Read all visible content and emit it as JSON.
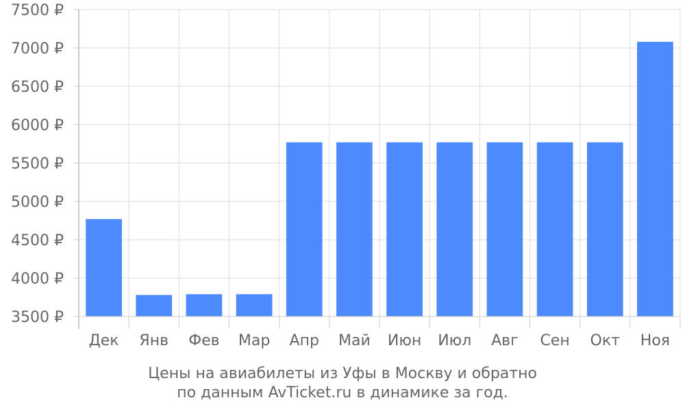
{
  "chart_data": {
    "type": "bar",
    "categories": [
      "Дек",
      "Янв",
      "Фев",
      "Мар",
      "Апр",
      "Май",
      "Июн",
      "Июл",
      "Авг",
      "Сен",
      "Окт",
      "Ноя"
    ],
    "values": [
      4770,
      3780,
      3790,
      3790,
      5770,
      5770,
      5770,
      5770,
      5770,
      5770,
      5770,
      7080
    ],
    "ylim": [
      3500,
      7500
    ],
    "yticks": [
      3500,
      4000,
      4500,
      5000,
      5500,
      6000,
      6500,
      7000,
      7500
    ],
    "ytick_labels": [
      "3500 ₽",
      "4000 ₽",
      "4500 ₽",
      "5000 ₽",
      "5500 ₽",
      "6000 ₽",
      "6500 ₽",
      "7000 ₽",
      "7500 ₽"
    ],
    "grid": true,
    "bar_color": "#4d8afb",
    "title_lines": [
      "Цены на авиабилеты из Уфы в Москву и обратно",
      "по данным AvTicket.ru в динамике за год."
    ]
  }
}
